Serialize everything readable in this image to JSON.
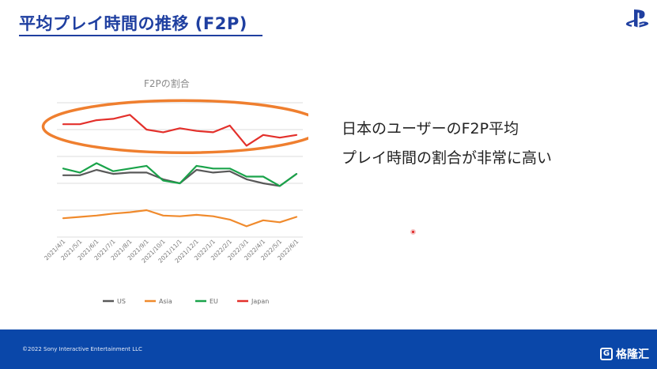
{
  "slide": {
    "title": "平均プレイ時間の推移 (F2P)",
    "message_line1": "日本のユーザーのF2P平均",
    "message_line2": "プレイ時間の割合が非常に高い",
    "copyright": "©2022 Sony Interactive Entertainment LLC",
    "watermark": "格隆汇"
  },
  "colors": {
    "title": "#1f3fa0",
    "footer": "#0a47a9",
    "us": "#595959",
    "asia": "#f08a2c",
    "eu": "#1aa34a",
    "japan": "#e3302b",
    "highlight_ellipse": "#ef7f2f"
  },
  "chart_data": {
    "type": "line",
    "title": "F2Pの割合",
    "xlabel": "",
    "ylabel": "",
    "grid": true,
    "legend": "bottom",
    "categories": [
      "2021/4/1",
      "2021/5/1",
      "2021/6/1",
      "2021/7/1",
      "2021/8/1",
      "2021/9/1",
      "2021/10/1",
      "2021/11/1",
      "2021/12/1",
      "2022/1/1",
      "2022/2/1",
      "2022/3/1",
      "2022/4/1",
      "2022/5/1",
      "2022/6/1"
    ],
    "ylim": [
      0,
      100
    ],
    "series": [
      {
        "name": "US",
        "color": "#595959",
        "values": [
          46,
          46,
          50,
          47,
          48,
          48,
          43,
          40,
          50,
          48,
          49,
          43,
          40,
          38,
          47
        ]
      },
      {
        "name": "Asia",
        "color": "#f08a2c",
        "values": [
          14,
          15,
          16,
          17.5,
          18.5,
          20,
          16,
          15.5,
          16.5,
          15.5,
          13,
          8,
          12.5,
          11,
          15
        ]
      },
      {
        "name": "EU",
        "color": "#1aa34a",
        "values": [
          51,
          48,
          55,
          49,
          51,
          53,
          42,
          40,
          53,
          51,
          51,
          45,
          45,
          38,
          47
        ]
      },
      {
        "name": "Japan",
        "color": "#e3302b",
        "values": [
          84,
          84,
          87,
          88,
          91,
          80,
          78,
          81,
          79,
          78,
          83,
          68,
          76,
          74,
          76
        ]
      }
    ]
  }
}
